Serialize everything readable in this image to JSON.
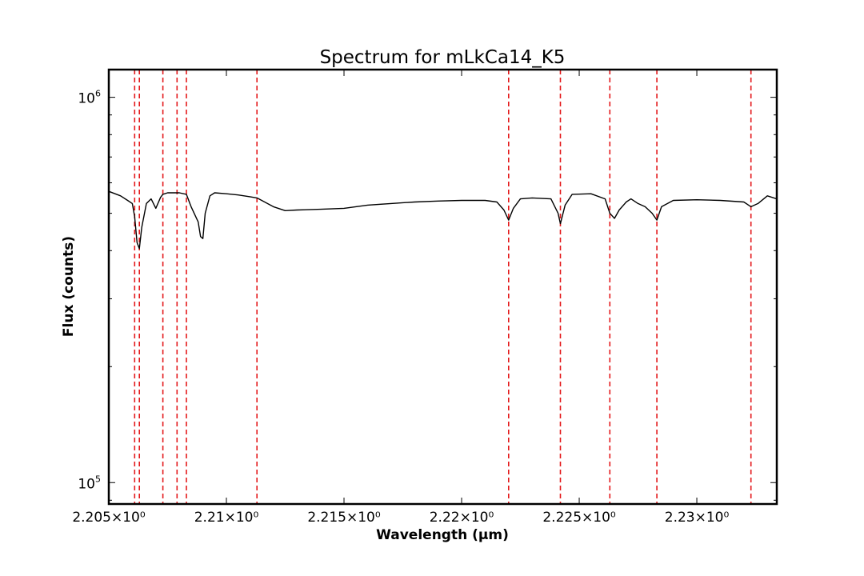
{
  "chart_data": {
    "type": "line",
    "title": "Spectrum for mLkCa14_K5",
    "xlabel": "Wavelength (μm)",
    "ylabel": "Flux (counts)",
    "xlim": [
      2.205,
      2.2334
    ],
    "ylim": [
      88000,
      1180000
    ],
    "yscale": "log",
    "grid": false,
    "x_ticks": [
      {
        "value": 2.205,
        "label": "2.205×10⁰"
      },
      {
        "value": 2.21,
        "label": "2.21×10⁰"
      },
      {
        "value": 2.215,
        "label": "2.215×10⁰"
      },
      {
        "value": 2.22,
        "label": "2.22×10⁰"
      },
      {
        "value": 2.225,
        "label": "2.225×10⁰"
      },
      {
        "value": 2.23,
        "label": "2.23×10⁰"
      }
    ],
    "y_ticks": [
      {
        "value": 100000,
        "base": "10",
        "exp": "5"
      },
      {
        "value": 1000000,
        "base": "10",
        "exp": "6"
      }
    ],
    "reference_lines": {
      "color": "#e41a1c",
      "style": "dashed",
      "x": [
        2.2061,
        2.2063,
        2.2073,
        2.2079,
        2.2083,
        2.2113,
        2.222,
        2.2242,
        2.2263,
        2.2283,
        2.2323
      ]
    },
    "series": [
      {
        "color": "#000000",
        "x": [
          2.205,
          2.2055,
          2.2058,
          2.206,
          2.2061,
          2.2062,
          2.2063,
          2.2064,
          2.2066,
          2.2068,
          2.207,
          2.2072,
          2.2073,
          2.2075,
          2.208,
          2.2083,
          2.2085,
          2.2088,
          2.2089,
          2.209,
          2.2091,
          2.2093,
          2.2095,
          2.21,
          2.2105,
          2.211,
          2.2113,
          2.2115,
          2.212,
          2.2125,
          2.213,
          2.214,
          2.215,
          2.216,
          2.217,
          2.218,
          2.219,
          2.22,
          2.221,
          2.2215,
          2.2218,
          2.222,
          2.2222,
          2.2225,
          2.223,
          2.2238,
          2.2241,
          2.2242,
          2.2244,
          2.2247,
          2.2255,
          2.2261,
          2.2263,
          2.2265,
          2.2267,
          2.227,
          2.2272,
          2.2275,
          2.2278,
          2.2281,
          2.2283,
          2.2285,
          2.229,
          2.23,
          2.231,
          2.232,
          2.2323,
          2.2326,
          2.233,
          2.2334
        ],
        "values": [
          570000,
          555000,
          540000,
          530000,
          490000,
          420000,
          405000,
          460000,
          530000,
          545000,
          515000,
          550000,
          560000,
          565000,
          565000,
          560000,
          520000,
          475000,
          435000,
          430000,
          500000,
          555000,
          565000,
          562000,
          558000,
          552000,
          548000,
          540000,
          520000,
          508000,
          510000,
          512000,
          515000,
          525000,
          530000,
          535000,
          538000,
          540000,
          540000,
          535000,
          510000,
          480000,
          515000,
          545000,
          548000,
          545000,
          500000,
          470000,
          525000,
          560000,
          562000,
          545000,
          500000,
          485000,
          510000,
          535000,
          545000,
          530000,
          520000,
          500000,
          480000,
          520000,
          540000,
          542000,
          540000,
          535000,
          520000,
          530000,
          555000,
          545000
        ]
      }
    ]
  }
}
